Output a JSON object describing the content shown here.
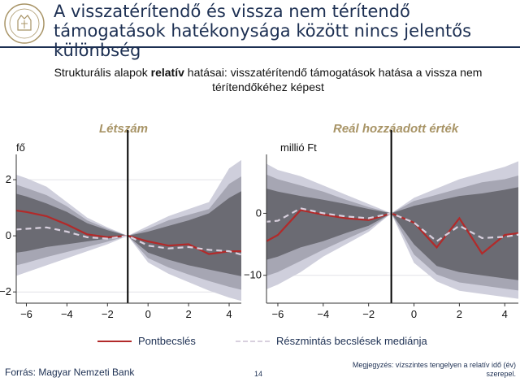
{
  "slide": {
    "title": "A visszatérítendő és vissza nem térítendő támogatások hatékonysága között nincs jelentős különbség",
    "subtitle_pre": "Strukturális alapok ",
    "subtitle_bold": "relatív",
    "subtitle_post": " hatásai: visszatérítendő támogatások hatása a vissza nem térítendőkéhez képest",
    "source": "Forrás: Magyar Nemzeti Bank",
    "page_number": "14",
    "note": "Megjegyzés: vízszintes tengelyen a relatív idő (év) szerepel."
  },
  "legend": {
    "point_label": "Pontbecslés",
    "median_label": "Részmintás becslések mediánja"
  },
  "colors": {
    "point": "#b22a2a",
    "median": "#d8d0de",
    "band_outer": "#cfcfdc",
    "band_mid": "#a6a6b3",
    "band_inner": "#6b6b73",
    "title": "#1c2f52",
    "panel_title": "#a89466"
  },
  "chart_data": [
    {
      "type": "line",
      "title": "Létszám",
      "ylabel": "fő",
      "x": [
        -7,
        -6,
        -5,
        -4,
        -3,
        -2,
        -1,
        0,
        1,
        2,
        3,
        4,
        5
      ],
      "xlim": [
        -6.5,
        4.6
      ],
      "ylim": [
        -2.4,
        2.9
      ],
      "xticks": [
        -6,
        -4,
        -2,
        0,
        2,
        4
      ],
      "yticks": [
        -2,
        0,
        2
      ],
      "vline": -1,
      "series": [
        {
          "name": "Pontbecslés",
          "values": [
            0.95,
            0.85,
            0.7,
            0.4,
            0.05,
            -0.05,
            0,
            -0.2,
            -0.35,
            -0.3,
            -0.65,
            -0.55,
            -0.55
          ]
        },
        {
          "name": "Részmintás becslések mediánja",
          "values": [
            0.2,
            0.25,
            0.3,
            0.15,
            -0.05,
            -0.1,
            0,
            -0.35,
            -0.45,
            -0.4,
            -0.5,
            -0.55,
            -0.75
          ]
        }
      ],
      "bands": {
        "outer": {
          "upper": [
            2.3,
            2.05,
            1.75,
            1.2,
            0.65,
            0.3,
            0,
            0.35,
            0.7,
            0.95,
            1.2,
            2.4,
            2.9
          ],
          "lower": [
            -1.55,
            -1.3,
            -1.05,
            -0.8,
            -0.55,
            -0.3,
            0,
            -0.95,
            -1.35,
            -1.65,
            -1.95,
            -2.2,
            -2.4
          ]
        },
        "mid": {
          "upper": [
            1.95,
            1.7,
            1.45,
            1.05,
            0.55,
            0.25,
            0,
            0.25,
            0.55,
            0.75,
            0.95,
            1.85,
            2.3
          ]
        },
        "inner": {
          "upper": [
            1.6,
            1.4,
            1.15,
            0.85,
            0.45,
            0.2,
            0,
            0.15,
            0.35,
            0.55,
            0.8,
            1.35,
            1.75
          ],
          "lower": [
            -0.65,
            -0.55,
            -0.4,
            -0.3,
            -0.2,
            -0.1,
            0,
            -0.6,
            -0.85,
            -1.05,
            -1.2,
            -1.35,
            -1.5
          ]
        }
      }
    },
    {
      "type": "line",
      "title": "Reál hozzáadott érték",
      "ylabel": "millió Ft",
      "x": [
        -7,
        -6,
        -5,
        -4,
        -3,
        -2,
        -1,
        0,
        1,
        2,
        3,
        4,
        5
      ],
      "xlim": [
        -6.5,
        4.6
      ],
      "ylim": [
        -14.5,
        9.5
      ],
      "xticks": [
        -6,
        -4,
        -2,
        0,
        2,
        4
      ],
      "yticks": [
        -10,
        0
      ],
      "vline": -1,
      "series": [
        {
          "name": "Pontbecslés",
          "values": [
            -5.5,
            -3.5,
            0.5,
            -0.2,
            -0.8,
            -1.1,
            0,
            -1.5,
            -5.5,
            -0.8,
            -6.5,
            -3.5,
            -3.0
          ]
        },
        {
          "name": "Részmintás becslések mediánja",
          "values": [
            -1.5,
            -1.2,
            0.8,
            0.0,
            -0.5,
            -0.8,
            0,
            -1.5,
            -4.5,
            -2.0,
            -4.0,
            -3.8,
            -3.2
          ]
        }
      ],
      "bands": {
        "outer": {
          "upper": [
            9.0,
            7.0,
            6.0,
            4.5,
            3.0,
            1.5,
            0,
            2.5,
            4.0,
            5.5,
            6.5,
            7.5,
            9.0
          ],
          "lower": [
            -13.0,
            -11.5,
            -9.5,
            -7.0,
            -5.0,
            -3.0,
            0,
            -8.0,
            -11.0,
            -12.5,
            -13.0,
            -13.5,
            -14.0
          ]
        },
        "mid": {
          "upper": [
            7.0,
            5.5,
            4.5,
            3.5,
            2.2,
            1.0,
            0,
            2.0,
            3.0,
            4.0,
            5.0,
            5.5,
            6.5
          ]
        },
        "inner": {
          "upper": [
            4.5,
            3.5,
            2.8,
            2.2,
            1.5,
            0.7,
            0,
            1.2,
            2.0,
            2.8,
            3.2,
            3.8,
            4.5
          ],
          "lower": [
            -8.0,
            -7.0,
            -5.5,
            -4.5,
            -3.2,
            -2.0,
            0,
            -5.0,
            -8.5,
            -9.5,
            -10.0,
            -10.5,
            -11.0
          ]
        }
      }
    }
  ]
}
